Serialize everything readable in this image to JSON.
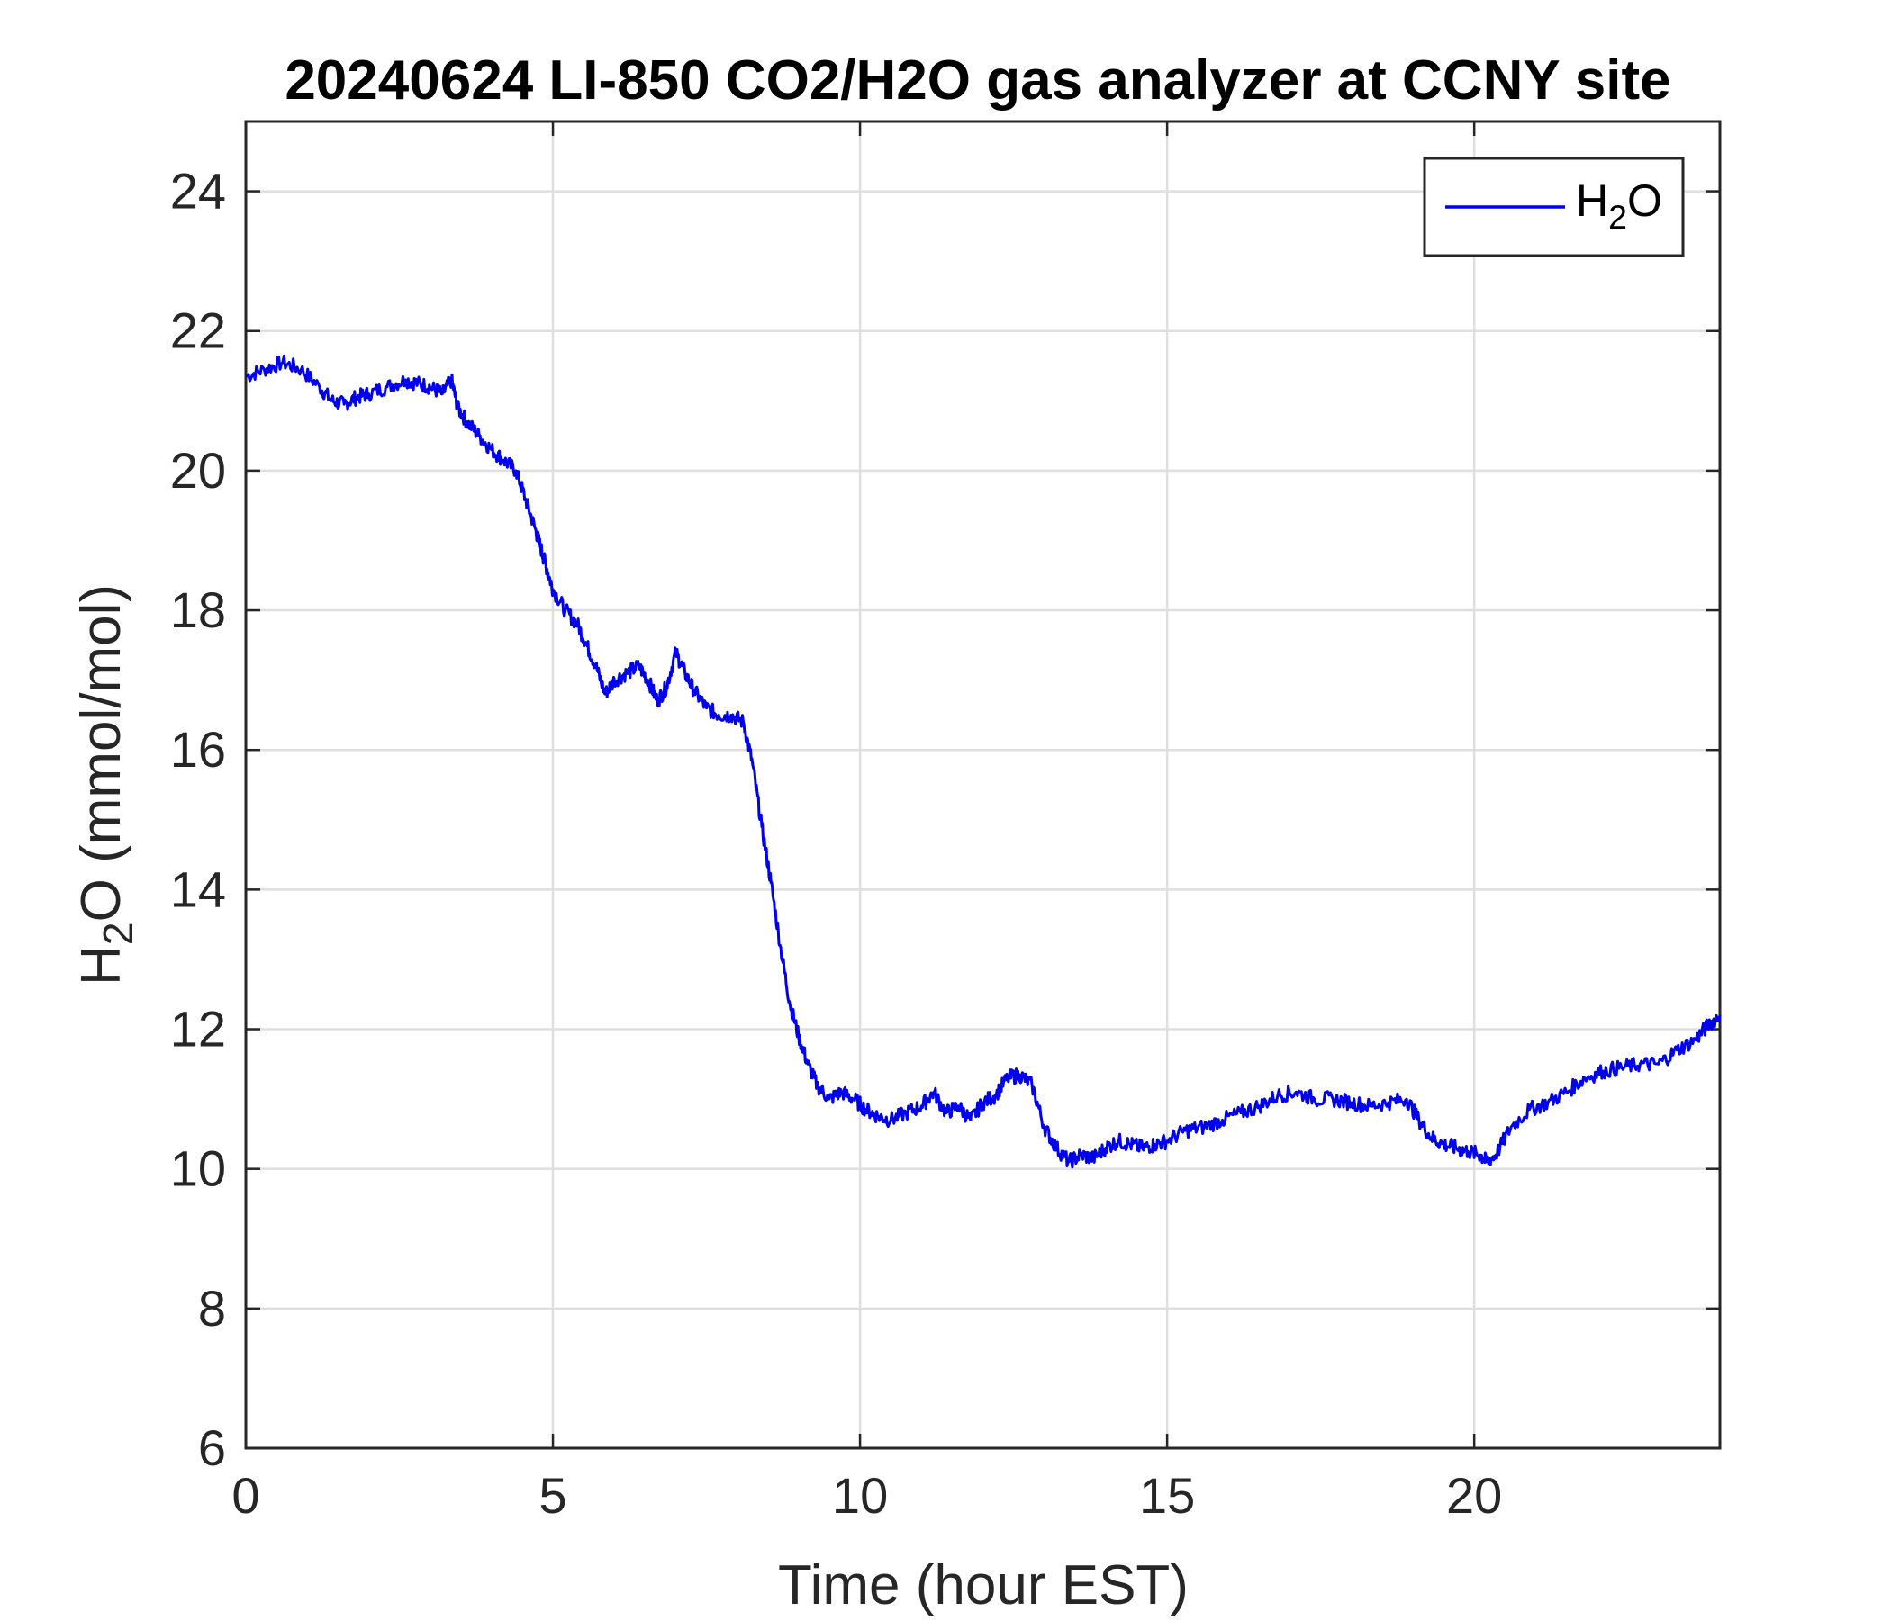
{
  "chart_data": {
    "type": "line",
    "title": "20240624 LI-850 CO2/H2O gas analyzer at CCNY site",
    "xlabel": "Time (hour EST)",
    "ylabel": "H2O (mmol/mol)",
    "xlim": [
      0,
      24
    ],
    "ylim": [
      6,
      25
    ],
    "xticks": [
      0,
      5,
      10,
      15,
      20
    ],
    "yticks": [
      6,
      8,
      10,
      12,
      14,
      16,
      18,
      20,
      22,
      24
    ],
    "grid": true,
    "legend_position": "top-right",
    "series": [
      {
        "name": "H2O",
        "color": "#0000ee",
        "x": [
          0,
          0.3,
          0.6,
          0.9,
          1.2,
          1.4,
          1.6,
          1.8,
          2.0,
          2.3,
          2.6,
          2.8,
          3.0,
          3.2,
          3.35,
          3.45,
          3.6,
          3.8,
          4.0,
          4.2,
          4.4,
          4.55,
          4.7,
          4.8,
          4.9,
          5.0,
          5.2,
          5.4,
          5.55,
          5.7,
          5.85,
          6.0,
          6.2,
          6.4,
          6.55,
          6.7,
          6.85,
          7.0,
          7.15,
          7.3,
          7.5,
          7.7,
          7.9,
          8.1,
          8.25,
          8.4,
          8.55,
          8.7,
          8.85,
          9.0,
          9.15,
          9.3,
          9.5,
          9.7,
          9.9,
          10.1,
          10.3,
          10.5,
          10.75,
          11.0,
          11.2,
          11.4,
          11.6,
          11.8,
          12.0,
          12.2,
          12.4,
          12.6,
          12.8,
          13.0,
          13.2,
          13.4,
          13.6,
          13.8,
          14.0,
          14.2,
          14.4,
          14.6,
          14.8,
          15.0,
          15.3,
          15.6,
          15.9,
          16.2,
          16.5,
          16.8,
          17.1,
          17.4,
          17.7,
          18.0,
          18.3,
          18.6,
          18.9,
          19.1,
          19.3,
          19.5,
          19.7,
          19.9,
          20.1,
          20.2,
          20.35,
          20.6,
          20.9,
          21.2,
          21.5,
          21.8,
          22.1,
          22.4,
          22.7,
          23.0,
          23.3,
          23.6,
          23.8,
          24.0
        ],
        "y": [
          21.35,
          21.45,
          21.55,
          21.45,
          21.2,
          21.0,
          20.95,
          21.05,
          21.1,
          21.2,
          21.3,
          21.25,
          21.2,
          21.1,
          21.3,
          20.9,
          20.7,
          20.5,
          20.3,
          20.15,
          20.0,
          19.6,
          19.2,
          18.9,
          18.6,
          18.3,
          18.0,
          17.8,
          17.5,
          17.2,
          16.8,
          17.0,
          17.1,
          17.2,
          17.0,
          16.7,
          16.9,
          17.4,
          17.1,
          16.85,
          16.6,
          16.5,
          16.5,
          16.4,
          15.8,
          14.9,
          14.1,
          13.2,
          12.4,
          11.9,
          11.5,
          11.2,
          11.0,
          11.1,
          11.0,
          10.85,
          10.75,
          10.7,
          10.8,
          10.9,
          11.1,
          10.8,
          10.9,
          10.7,
          10.95,
          11.05,
          11.3,
          11.35,
          11.2,
          10.6,
          10.3,
          10.1,
          10.2,
          10.15,
          10.3,
          10.4,
          10.35,
          10.3,
          10.35,
          10.4,
          10.55,
          10.6,
          10.7,
          10.8,
          10.9,
          11.05,
          11.1,
          11.0,
          11.0,
          10.95,
          10.9,
          10.95,
          11.0,
          10.7,
          10.45,
          10.35,
          10.3,
          10.25,
          10.2,
          10.1,
          10.2,
          10.6,
          10.85,
          10.95,
          11.1,
          11.3,
          11.4,
          11.45,
          11.5,
          11.5,
          11.7,
          11.85,
          12.05,
          12.2
        ]
      }
    ]
  }
}
